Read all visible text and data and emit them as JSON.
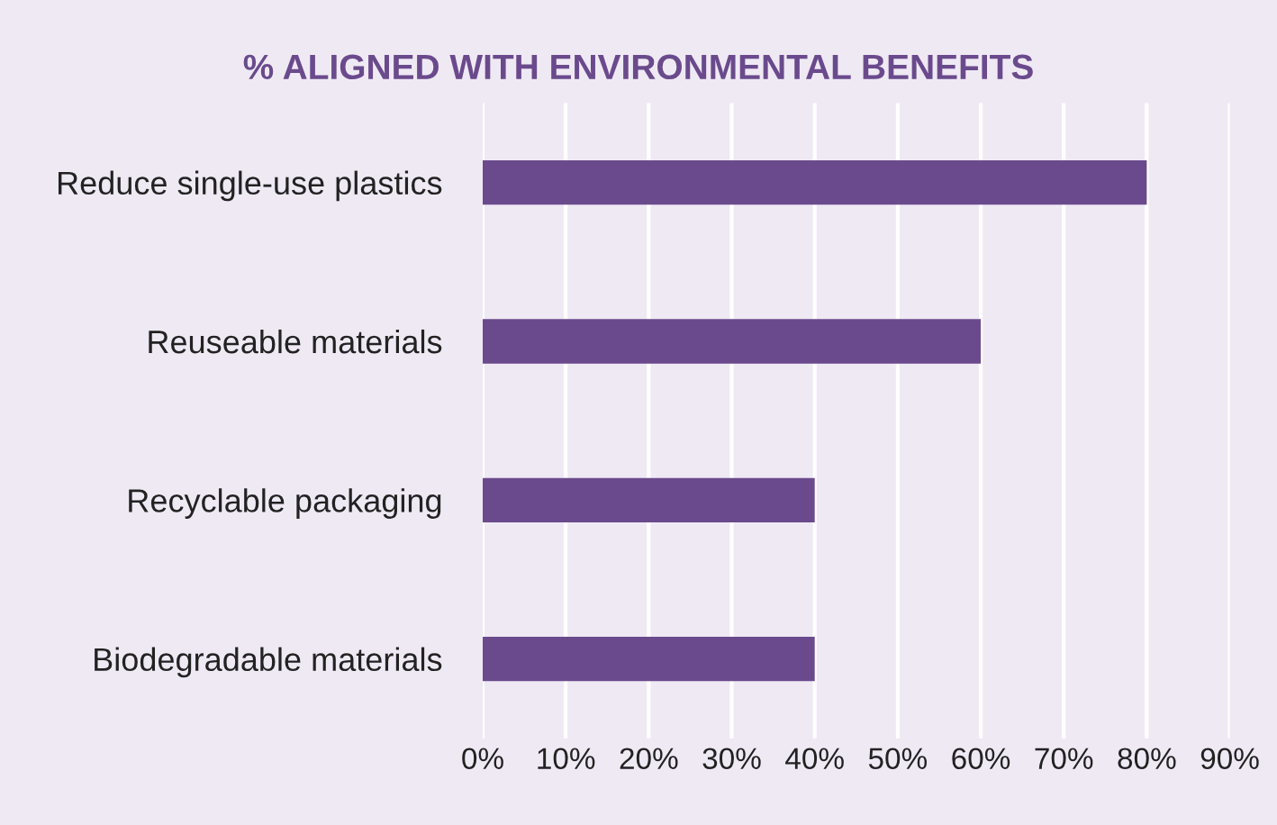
{
  "chart_data": {
    "type": "bar",
    "orientation": "horizontal",
    "title": "% ALIGNED WITH ENVIRONMENTAL BENEFITS",
    "categories": [
      "Reduce single-use plastics",
      "Reuseable materials",
      "Recyclable packaging",
      "Biodegradable materials"
    ],
    "values": [
      80,
      60,
      40,
      40
    ],
    "color": "#6a4a8c",
    "xlim": [
      0,
      90
    ],
    "xticks": [
      {
        "value": 0,
        "label": "0%"
      },
      {
        "value": 10,
        "label": "10%"
      },
      {
        "value": 20,
        "label": "20%"
      },
      {
        "value": 30,
        "label": "30%"
      },
      {
        "value": 40,
        "label": "40%"
      },
      {
        "value": 50,
        "label": "50%"
      },
      {
        "value": 60,
        "label": "60%"
      },
      {
        "value": 70,
        "label": "70%"
      },
      {
        "value": 80,
        "label": "80%"
      },
      {
        "value": 90,
        "label": "90%"
      }
    ],
    "grid": "x"
  }
}
